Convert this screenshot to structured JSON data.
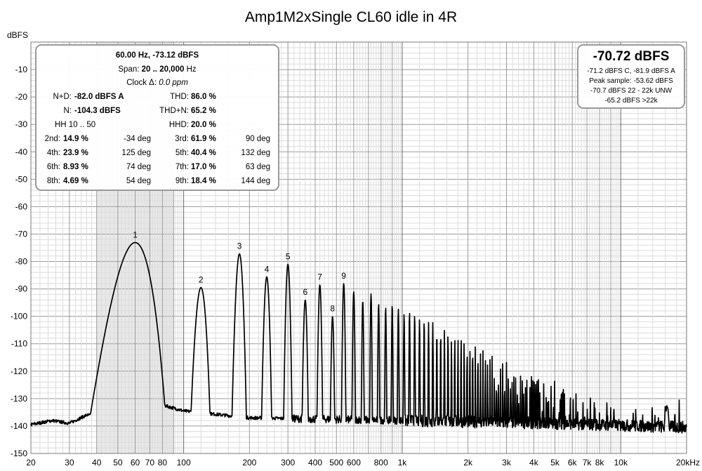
{
  "chart_data": {
    "type": "line",
    "title": "Amp1M2xSingle CL60 idle in 4R",
    "ylabel": "dBFS",
    "xlabel": "",
    "x_scale": "log",
    "xlim": [
      20,
      20000
    ],
    "ylim": [
      -150,
      0
    ],
    "grid": true,
    "y_ticks": [
      -10,
      -20,
      -30,
      -40,
      -50,
      -60,
      -70,
      -80,
      -90,
      -100,
      -110,
      -120,
      -130,
      -140,
      -150
    ],
    "x_ticks": [
      {
        "value": 20,
        "label": "20"
      },
      {
        "value": 30,
        "label": "30"
      },
      {
        "value": 40,
        "label": "40"
      },
      {
        "value": 50,
        "label": "50"
      },
      {
        "value": 60,
        "label": "60"
      },
      {
        "value": 70,
        "label": "70"
      },
      {
        "value": 80,
        "label": "80"
      },
      {
        "value": 100,
        "label": "100"
      },
      {
        "value": 200,
        "label": "200"
      },
      {
        "value": 300,
        "label": "300"
      },
      {
        "value": 400,
        "label": "400"
      },
      {
        "value": 500,
        "label": "500"
      },
      {
        "value": 600,
        "label": "600"
      },
      {
        "value": 800,
        "label": "800"
      },
      {
        "value": 1000,
        "label": "1k"
      },
      {
        "value": 2000,
        "label": "2k"
      },
      {
        "value": 3000,
        "label": "3k"
      },
      {
        "value": 4000,
        "label": "4k"
      },
      {
        "value": 5000,
        "label": "5k"
      },
      {
        "value": 6000,
        "label": "6k"
      },
      {
        "value": 7000,
        "label": "7k"
      },
      {
        "value": 8000,
        "label": "8k"
      },
      {
        "value": 10000,
        "label": "10k"
      },
      {
        "value": 20000,
        "label": "20kHz"
      }
    ],
    "highlight_band": [
      40,
      90
    ],
    "fundamental_hz": 60,
    "harmonics": [
      {
        "label": "1",
        "freq": 60,
        "level": -73.1
      },
      {
        "label": "2",
        "freq": 120,
        "level": -89.5
      },
      {
        "label": "3",
        "freq": 180,
        "level": -77.2
      },
      {
        "label": "4",
        "freq": 240,
        "level": -85.6
      },
      {
        "label": "5",
        "freq": 300,
        "level": -81.0
      },
      {
        "label": "6",
        "freq": 360,
        "level": -94.0
      },
      {
        "label": "7",
        "freq": 420,
        "level": -88.5
      },
      {
        "label": "8",
        "freq": 480,
        "level": -100.0
      },
      {
        "label": "9",
        "freq": 540,
        "level": -88.0
      }
    ],
    "higher_harmonic_envelope": [
      {
        "freq": 600,
        "level": -91
      },
      {
        "freq": 1000,
        "level": -98
      },
      {
        "freq": 2000,
        "level": -110
      },
      {
        "freq": 3000,
        "level": -117
      },
      {
        "freq": 4000,
        "level": -122
      },
      {
        "freq": 6000,
        "level": -128
      },
      {
        "freq": 10000,
        "level": -134
      }
    ],
    "spurs": [
      {
        "freq": 8000,
        "level": -121
      },
      {
        "freq": 18500,
        "level": -119.5
      }
    ],
    "noise_floor": [
      {
        "freq": 20,
        "level": -139.5
      },
      {
        "freq": 25,
        "level": -138
      },
      {
        "freq": 30,
        "level": -139
      },
      {
        "freq": 36,
        "level": -136
      },
      {
        "freq": 45,
        "level": -136.5
      },
      {
        "freq": 52,
        "level": -135
      },
      {
        "freq": 70,
        "level": -131
      },
      {
        "freq": 100,
        "level": -134.5
      },
      {
        "freq": 200,
        "level": -137
      },
      {
        "freq": 1000,
        "level": -138
      },
      {
        "freq": 5000,
        "level": -139
      },
      {
        "freq": 20000,
        "level": -140.5
      }
    ]
  },
  "stats": {
    "header": {
      "freq": "60.00 Hz,",
      "level": "-73.12 dBFS"
    },
    "span": {
      "label": "Span:",
      "value": "20 .. 20,000",
      "unit": "Hz"
    },
    "clock": {
      "label": "Clock Δ:",
      "value": "0.0 ppm"
    },
    "nd": {
      "label": "N+D:",
      "value": "-82.0 dBFS A"
    },
    "thd": {
      "label": "THD:",
      "value": "86.0 %"
    },
    "n": {
      "label": "N:",
      "value": "-104.3 dBFS"
    },
    "thdn": {
      "label": "THD+N:",
      "value": "65.2 %"
    },
    "hh": {
      "label": "HH 10 .. 50"
    },
    "hhd": {
      "label": "HHD:",
      "value": "20.0 %"
    },
    "rows": [
      {
        "l_label": "2nd:",
        "l_val": "14.9 %",
        "l_deg": "-34 deg",
        "r_label": "3rd:",
        "r_val": "61.9 %",
        "r_deg": "90 deg"
      },
      {
        "l_label": "4th:",
        "l_val": "23.9 %",
        "l_deg": "125 deg",
        "r_label": "5th:",
        "r_val": "40.4 %",
        "r_deg": "132 deg"
      },
      {
        "l_label": "6th:",
        "l_val": "8.93 %",
        "l_deg": "74 deg",
        "r_label": "7th:",
        "r_val": "17.0 %",
        "r_deg": "63 deg"
      },
      {
        "l_label": "8th:",
        "l_val": "4.69 %",
        "l_deg": "54 deg",
        "r_label": "9th:",
        "r_val": "18.4 %",
        "r_deg": "144 deg"
      }
    ]
  },
  "summary": {
    "level": "-70.72 dBFS",
    "line1": "-71.2 dBFS C, -81.9 dBFS A",
    "line2": "Peak sample: -53.62 dBFS",
    "line3": "-70.7 dBFS 22 - 22k UNW",
    "line4": "-65.2 dBFS >22k"
  },
  "colors": {
    "trace": "#000000",
    "grid_major": "#9a9a9a",
    "grid_minor": "#dcdcdc",
    "band": "#e8e8e8",
    "box_border": "#9a9a9a"
  }
}
